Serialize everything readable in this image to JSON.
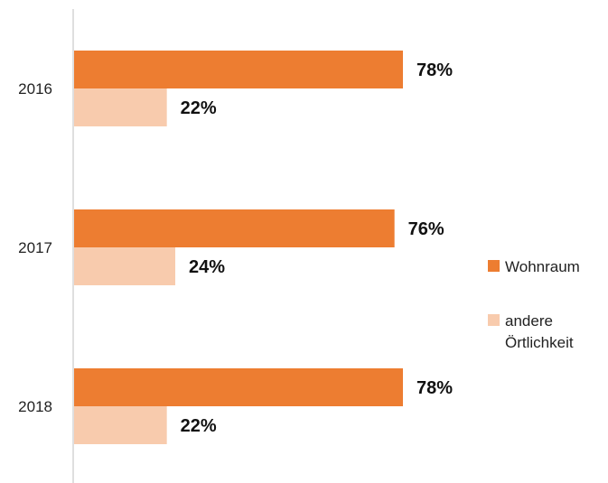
{
  "chart_data": {
    "type": "bar",
    "orientation": "horizontal",
    "categories": [
      "2016",
      "2017",
      "2018"
    ],
    "series": [
      {
        "name": "Wohnraum",
        "values": [
          78,
          76,
          78
        ],
        "labels": [
          "78%",
          "76%",
          "78%"
        ],
        "color": "#ED7D31"
      },
      {
        "name": "andere Örtlichkeit",
        "values": [
          22,
          24,
          22
        ],
        "labels": [
          "22%",
          "24%",
          "22%"
        ],
        "color": "#F8CBAD"
      }
    ],
    "unit": "%",
    "xlim": [
      0,
      100
    ],
    "grid": false,
    "legend_position": "right"
  }
}
